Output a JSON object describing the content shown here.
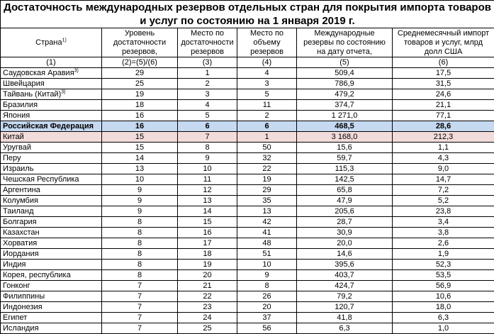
{
  "title": "Достаточность международных резервов отдельных стран для покрытия импорта товаров и услуг по состоянию на 1 января 2019 г.",
  "columns": [
    {
      "label": "Страна",
      "sup": "1)",
      "index": "(1)"
    },
    {
      "label": "Уровень достаточности резервов,",
      "index": "(2)=(5)/(6)"
    },
    {
      "label": "Место по достаточности резервов",
      "index": "(3)"
    },
    {
      "label": "Место по объему резервов",
      "index": "(4)"
    },
    {
      "label": "Международные резервы по состоянию на дату отчета,",
      "index": "(5)"
    },
    {
      "label": "Среднемесячный импорт товаров и услуг, млрд  долл  США",
      "index": "(6)"
    }
  ],
  "highlight_colors": {
    "russia": "#c5d9f1",
    "china": "#f2dcdb"
  },
  "rows": [
    {
      "country": "Саудовская Аравия",
      "sup": "3)",
      "c2": "29",
      "c3": "1",
      "c4": "4",
      "c5": "509,4",
      "c6": "17,5"
    },
    {
      "country": "Швейцария",
      "c2": "25",
      "c3": "2",
      "c4": "3",
      "c5": "786,9",
      "c6": "31,5"
    },
    {
      "country": "Тайвань (Китай)",
      "sup": "3)",
      "c2": "19",
      "c3": "3",
      "c4": "5",
      "c5": "479,2",
      "c6": "24,6"
    },
    {
      "country": "Бразилия",
      "c2": "18",
      "c3": "4",
      "c4": "11",
      "c5": "374,7",
      "c6": "21,1"
    },
    {
      "country": "Япония",
      "c2": "16",
      "c3": "5",
      "c4": "2",
      "c5": "1 271,0",
      "c6": "77,1"
    },
    {
      "country": "Российская Федерация",
      "c2": "16",
      "c3": "6",
      "c4": "6",
      "c5": "468,5",
      "c6": "28,6",
      "highlight": "blue"
    },
    {
      "country": "Китай",
      "c2": "15",
      "c3": "7",
      "c4": "1",
      "c5": "3 168,0",
      "c6": "212,3",
      "highlight": "pink"
    },
    {
      "country": "Уругвай",
      "c2": "15",
      "c3": "8",
      "c4": "50",
      "c5": "15,6",
      "c6": "1,1"
    },
    {
      "country": "Перу",
      "c2": "14",
      "c3": "9",
      "c4": "32",
      "c5": "59,7",
      "c6": "4,3"
    },
    {
      "country": "Израиль",
      "c2": "13",
      "c3": "10",
      "c4": "22",
      "c5": "115,3",
      "c6": "9,0"
    },
    {
      "country": "Чешская Республика",
      "c2": "10",
      "c3": "11",
      "c4": "19",
      "c5": "142,5",
      "c6": "14,7"
    },
    {
      "country": "Аргентина",
      "c2": "9",
      "c3": "12",
      "c4": "29",
      "c5": "65,8",
      "c6": "7,2"
    },
    {
      "country": "Колумбия",
      "c2": "9",
      "c3": "13",
      "c4": "35",
      "c5": "47,9",
      "c6": "5,2"
    },
    {
      "country": "Таиланд",
      "c2": "9",
      "c3": "14",
      "c4": "13",
      "c5": "205,6",
      "c6": "23,8"
    },
    {
      "country": "Болгария",
      "c2": "8",
      "c3": "15",
      "c4": "42",
      "c5": "28,7",
      "c6": "3,4"
    },
    {
      "country": "Казахстан",
      "c2": "8",
      "c3": "16",
      "c4": "41",
      "c5": "30,9",
      "c6": "3,8"
    },
    {
      "country": "Хорватия",
      "c2": "8",
      "c3": "17",
      "c4": "48",
      "c5": "20,0",
      "c6": "2,6"
    },
    {
      "country": "Иордания",
      "c2": "8",
      "c3": "18",
      "c4": "51",
      "c5": "14,6",
      "c6": "1,9"
    },
    {
      "country": "Индия",
      "c2": "8",
      "c3": "19",
      "c4": "10",
      "c5": "395,6",
      "c6": "52,3"
    },
    {
      "country": "Корея, республика",
      "c2": "8",
      "c3": "20",
      "c4": "9",
      "c5": "403,7",
      "c6": "53,5"
    },
    {
      "country": "Гонконг",
      "c2": "7",
      "c3": "21",
      "c4": "8",
      "c5": "424,7",
      "c6": "56,9"
    },
    {
      "country": "Филиппины",
      "c2": "7",
      "c3": "22",
      "c4": "26",
      "c5": "79,2",
      "c6": "10,6"
    },
    {
      "country": "Индонезия",
      "c2": "7",
      "c3": "23",
      "c4": "20",
      "c5": "120,7",
      "c6": "18,0"
    },
    {
      "country": "Египет",
      "c2": "7",
      "c3": "24",
      "c4": "37",
      "c5": "41,8",
      "c6": "6,3"
    },
    {
      "country": "Исландия",
      "c2": "7",
      "c3": "25",
      "c4": "56",
      "c5": "6,3",
      "c6": "1,0"
    }
  ]
}
